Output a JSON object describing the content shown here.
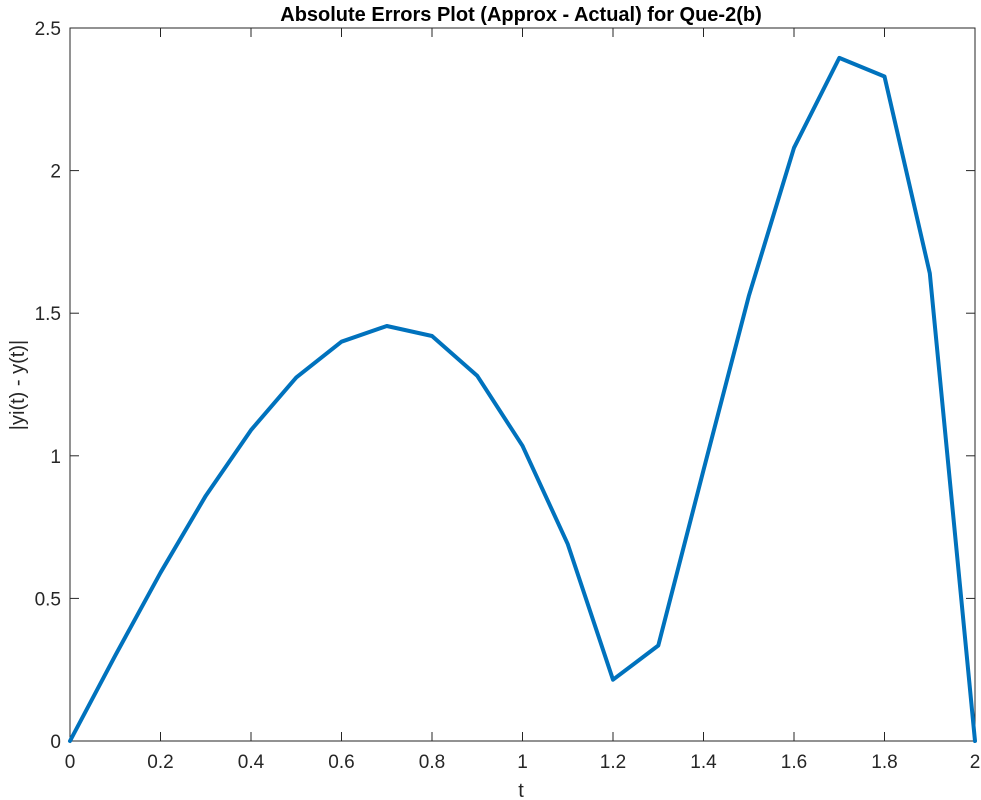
{
  "chart_data": {
    "type": "line",
    "title": "Absolute Errors Plot (Approx - Actual) for Que-2(b)",
    "xlabel": "t",
    "ylabel": "|yi(t) - y(t)|",
    "xlim": [
      0,
      2
    ],
    "ylim": [
      0,
      2.5
    ],
    "x_ticks": [
      0,
      0.2,
      0.4,
      0.6,
      0.8,
      1,
      1.2,
      1.4,
      1.6,
      1.8,
      2
    ],
    "x_tick_labels": [
      "0",
      "0.2",
      "0.4",
      "0.6",
      "0.8",
      "1",
      "1.2",
      "1.4",
      "1.6",
      "1.8",
      "2"
    ],
    "y_ticks": [
      0,
      0.5,
      1,
      1.5,
      2,
      2.5
    ],
    "y_tick_labels": [
      "0",
      "0.5",
      "1",
      "1.5",
      "2",
      "2.5"
    ],
    "grid": false,
    "box": true,
    "series": [
      {
        "color": "#0072BD",
        "x": [
          0,
          0.1,
          0.2,
          0.3,
          0.4,
          0.5,
          0.6,
          0.7,
          0.8,
          0.9,
          1.0,
          1.1,
          1.2,
          1.3,
          1.4,
          1.5,
          1.6,
          1.7,
          1.8,
          1.9,
          2.0
        ],
        "y": [
          0,
          0.3,
          0.59,
          0.86,
          1.09,
          1.275,
          1.4,
          1.455,
          1.42,
          1.28,
          1.035,
          0.69,
          0.215,
          0.335,
          0.95,
          1.56,
          2.08,
          2.395,
          2.33,
          1.64,
          0
        ]
      }
    ]
  }
}
